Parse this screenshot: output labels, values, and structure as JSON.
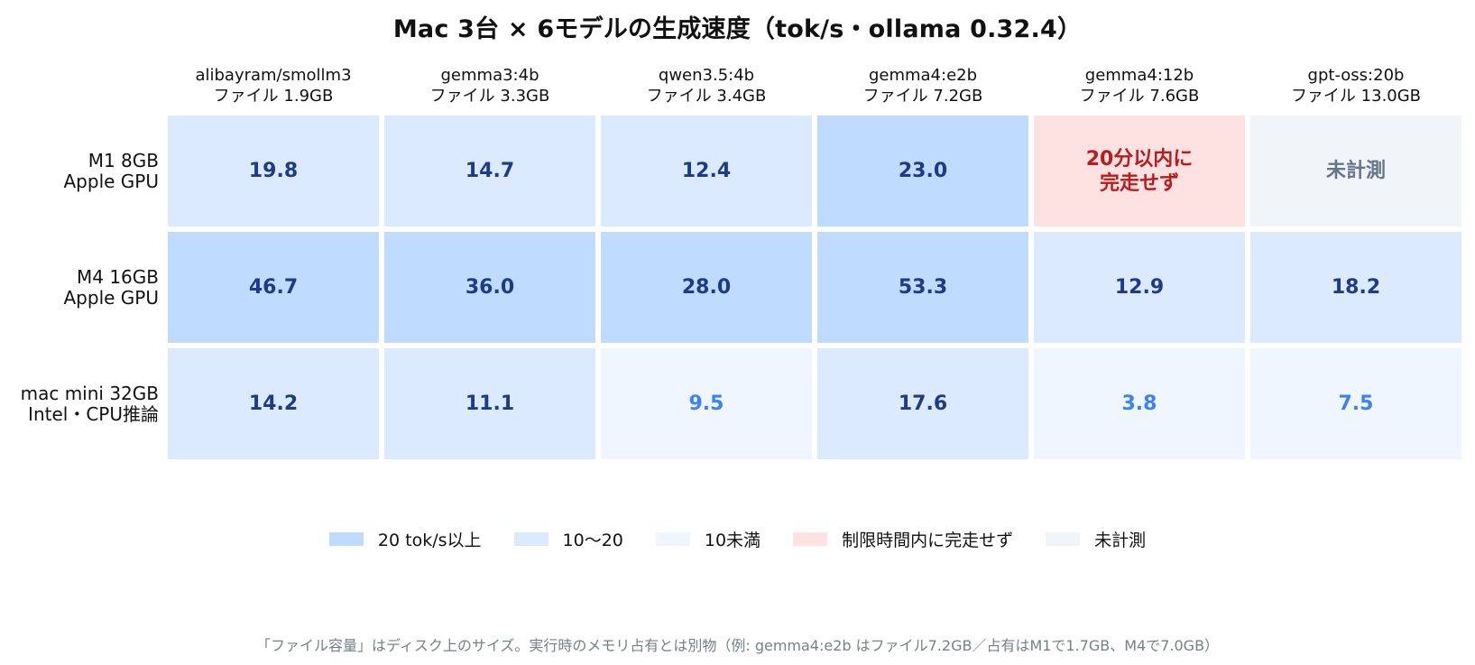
{
  "chart_data": {
    "type": "table",
    "title": "Mac 3台 × 6モデルの生成速度（tok/s・ollama 0.32.4）",
    "columns": [
      {
        "model": "alibayram/smollm3",
        "size": "ファイル 1.9GB"
      },
      {
        "model": "gemma3:4b",
        "size": "ファイル 3.3GB"
      },
      {
        "model": "qwen3.5:4b",
        "size": "ファイル 3.4GB"
      },
      {
        "model": "gemma4:e2b",
        "size": "ファイル 7.2GB"
      },
      {
        "model": "gemma4:12b",
        "size": "ファイル 7.6GB"
      },
      {
        "model": "gpt-oss:20b",
        "size": "ファイル 13.0GB"
      }
    ],
    "rows": [
      {
        "machine": "M1 8GB",
        "backend": "Apple GPU"
      },
      {
        "machine": "M4 16GB",
        "backend": "Apple GPU"
      },
      {
        "machine": "mac mini 32GB",
        "backend": "Intel・CPU推論"
      }
    ],
    "cells": [
      [
        {
          "text": "19.8",
          "category": "mid"
        },
        {
          "text": "14.7",
          "category": "mid"
        },
        {
          "text": "12.4",
          "category": "mid"
        },
        {
          "text": "23.0",
          "category": "high"
        },
        {
          "text": "20分以内に\n完走せず",
          "category": "timeout"
        },
        {
          "text": "未計測",
          "category": "unmeasured"
        }
      ],
      [
        {
          "text": "46.7",
          "category": "high"
        },
        {
          "text": "36.0",
          "category": "high"
        },
        {
          "text": "28.0",
          "category": "high"
        },
        {
          "text": "53.3",
          "category": "high"
        },
        {
          "text": "12.9",
          "category": "mid"
        },
        {
          "text": "18.2",
          "category": "mid"
        }
      ],
      [
        {
          "text": "14.2",
          "category": "mid"
        },
        {
          "text": "11.1",
          "category": "mid"
        },
        {
          "text": "9.5",
          "category": "low"
        },
        {
          "text": "17.6",
          "category": "mid"
        },
        {
          "text": "3.8",
          "category": "low"
        },
        {
          "text": "7.5",
          "category": "low"
        }
      ]
    ],
    "legend": [
      {
        "key": "high",
        "label": "20 tok/s以上"
      },
      {
        "key": "mid",
        "label": "10〜20"
      },
      {
        "key": "low",
        "label": "10未満"
      },
      {
        "key": "timeout",
        "label": "制限時間内に完走せず"
      },
      {
        "key": "unmeasured",
        "label": "未計測"
      }
    ],
    "legend_placement": "bottom-center",
    "footnote": "「ファイル容量」はディスク上のサイズ。実行時のメモリ占有とは別物（例: gemma4:e2b はファイル7.2GB／占有はM1で1.7GB、M4で7.0GB）"
  },
  "colors": {
    "high": {
      "fill": "#bfdbfe",
      "text": "#1e3a8a"
    },
    "mid": {
      "fill": "#dbeafe",
      "text": "#1e3a8a"
    },
    "low": {
      "fill": "#eff6ff",
      "text": "#3b82f6"
    },
    "timeout": {
      "fill": "#fee2e2",
      "text": "#b91c1c"
    },
    "unmeasured": {
      "fill": "#f1f5f9",
      "text": "#64748b"
    }
  }
}
